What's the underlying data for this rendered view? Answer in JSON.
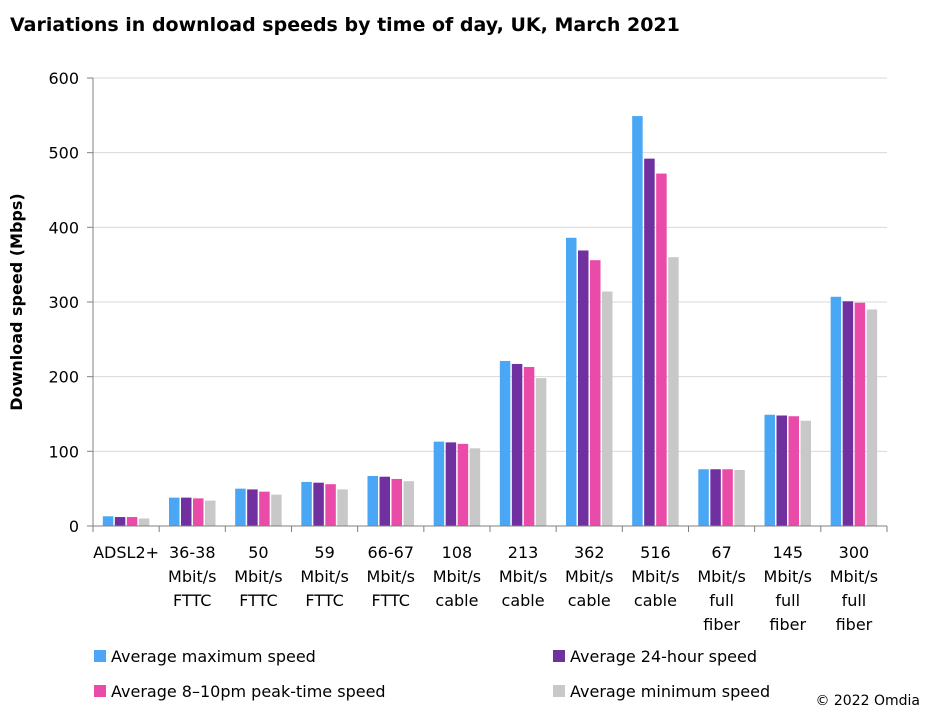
{
  "chart_data": {
    "type": "bar",
    "title": "Variations in download speeds by time of day, UK, March 2021",
    "xlabel": "",
    "ylabel": "Download speed (Mbps)",
    "ylim": [
      0,
      600
    ],
    "yticks": [
      0,
      100,
      200,
      300,
      400,
      500,
      600
    ],
    "grid": true,
    "legend_position": "bottom",
    "categories": [
      [
        "ADSL2+"
      ],
      [
        "36-38",
        "Mbit/s",
        "FTTC"
      ],
      [
        "50",
        "Mbit/s",
        "FTTC"
      ],
      [
        "59",
        "Mbit/s",
        "FTTC"
      ],
      [
        "66-67",
        "Mbit/s",
        "FTTC"
      ],
      [
        "108",
        "Mbit/s",
        "cable"
      ],
      [
        "213",
        "Mbit/s",
        "cable"
      ],
      [
        "362",
        "Mbit/s",
        "cable"
      ],
      [
        "516",
        "Mbit/s",
        "cable"
      ],
      [
        "67",
        "Mbit/s",
        "full",
        "fiber"
      ],
      [
        "145",
        "Mbit/s",
        "full",
        "fiber"
      ],
      [
        "300",
        "Mbit/s",
        "full",
        "fiber"
      ]
    ],
    "series": [
      {
        "name": "Average maximum speed",
        "color": "#4aa7f5",
        "values": [
          13,
          38,
          50,
          59,
          67,
          113,
          221,
          386,
          549,
          76,
          149,
          307
        ]
      },
      {
        "name": "Average 24-hour speed",
        "color": "#7030a0",
        "values": [
          12,
          38,
          49,
          58,
          66,
          112,
          217,
          369,
          492,
          76,
          148,
          301
        ]
      },
      {
        "name": "Average 8–10pm peak-time speed",
        "color": "#ea4aa8",
        "values": [
          12,
          37,
          46,
          56,
          63,
          110,
          213,
          356,
          472,
          76,
          147,
          299
        ]
      },
      {
        "name": "Average minimum speed",
        "color": "#c8c8c8",
        "values": [
          10,
          34,
          42,
          49,
          60,
          104,
          198,
          314,
          360,
          75,
          141,
          290
        ]
      }
    ]
  },
  "credit": "© 2022 Omdia"
}
